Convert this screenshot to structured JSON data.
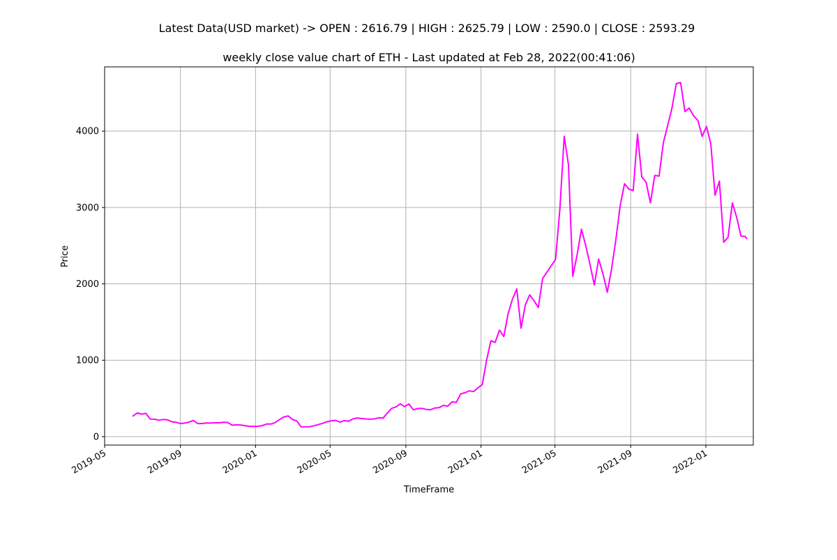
{
  "chart_data": {
    "type": "line",
    "suptitle": "Latest Data(USD market) -> OPEN : 2616.79 | HIGH : 2625.79 | LOW : 2590.0 | CLOSE : 2593.29",
    "title": "weekly close value chart of ETH - Last updated at Feb 28, 2022(00:41:06)",
    "xlabel": "TimeFrame",
    "ylabel": "Price",
    "xlim": [
      "2019-05-01",
      "2022-03-19"
    ],
    "ylim": [
      -110,
      4840
    ],
    "x_ticks": [
      {
        "date": "2019-05-01",
        "label": "2019-05"
      },
      {
        "date": "2019-09-01",
        "label": "2019-09"
      },
      {
        "date": "2020-01-01",
        "label": "2020-01"
      },
      {
        "date": "2020-05-01",
        "label": "2020-05"
      },
      {
        "date": "2020-09-01",
        "label": "2020-09"
      },
      {
        "date": "2021-01-01",
        "label": "2021-01"
      },
      {
        "date": "2021-05-01",
        "label": "2021-05"
      },
      {
        "date": "2021-09-01",
        "label": "2021-09"
      },
      {
        "date": "2022-01-01",
        "label": "2022-01"
      }
    ],
    "y_ticks": [
      {
        "value": 0,
        "label": "0"
      },
      {
        "value": 1000,
        "label": "1000"
      },
      {
        "value": 2000,
        "label": "2000"
      },
      {
        "value": 3000,
        "label": "3000"
      },
      {
        "value": 4000,
        "label": "4000"
      }
    ],
    "grid": true,
    "series": [
      {
        "color": "#ff00ff",
        "points": [
          [
            "2019-06-16",
            270
          ],
          [
            "2019-06-23",
            310
          ],
          [
            "2019-06-30",
            295
          ],
          [
            "2019-07-07",
            305
          ],
          [
            "2019-07-14",
            230
          ],
          [
            "2019-07-21",
            228
          ],
          [
            "2019-07-28",
            215
          ],
          [
            "2019-08-04",
            225
          ],
          [
            "2019-08-11",
            220
          ],
          [
            "2019-08-18",
            195
          ],
          [
            "2019-08-25",
            188
          ],
          [
            "2019-09-01",
            172
          ],
          [
            "2019-09-08",
            178
          ],
          [
            "2019-09-15",
            190
          ],
          [
            "2019-09-22",
            212
          ],
          [
            "2019-09-29",
            172
          ],
          [
            "2019-10-06",
            172
          ],
          [
            "2019-10-13",
            180
          ],
          [
            "2019-10-20",
            178
          ],
          [
            "2019-10-27",
            182
          ],
          [
            "2019-11-03",
            182
          ],
          [
            "2019-11-10",
            188
          ],
          [
            "2019-11-17",
            185
          ],
          [
            "2019-11-24",
            150
          ],
          [
            "2019-12-01",
            155
          ],
          [
            "2019-12-08",
            152
          ],
          [
            "2019-12-15",
            144
          ],
          [
            "2019-12-22",
            135
          ],
          [
            "2019-12-29",
            135
          ],
          [
            "2020-01-05",
            135
          ],
          [
            "2020-01-12",
            145
          ],
          [
            "2020-01-19",
            165
          ],
          [
            "2020-01-26",
            165
          ],
          [
            "2020-02-02",
            185
          ],
          [
            "2020-02-09",
            225
          ],
          [
            "2020-02-16",
            258
          ],
          [
            "2020-02-23",
            272
          ],
          [
            "2020-03-01",
            225
          ],
          [
            "2020-03-08",
            205
          ],
          [
            "2020-03-15",
            128
          ],
          [
            "2020-03-22",
            128
          ],
          [
            "2020-03-29",
            130
          ],
          [
            "2020-04-05",
            143
          ],
          [
            "2020-04-12",
            158
          ],
          [
            "2020-04-19",
            175
          ],
          [
            "2020-04-26",
            195
          ],
          [
            "2020-05-03",
            208
          ],
          [
            "2020-05-10",
            214
          ],
          [
            "2020-05-17",
            190
          ],
          [
            "2020-05-24",
            210
          ],
          [
            "2020-05-31",
            203
          ],
          [
            "2020-06-07",
            232
          ],
          [
            "2020-06-14",
            245
          ],
          [
            "2020-06-21",
            237
          ],
          [
            "2020-06-28",
            232
          ],
          [
            "2020-07-05",
            230
          ],
          [
            "2020-07-12",
            232
          ],
          [
            "2020-07-19",
            247
          ],
          [
            "2020-07-26",
            243
          ],
          [
            "2020-08-02",
            310
          ],
          [
            "2020-08-09",
            370
          ],
          [
            "2020-08-16",
            390
          ],
          [
            "2020-08-23",
            430
          ],
          [
            "2020-08-30",
            393
          ],
          [
            "2020-09-06",
            428
          ],
          [
            "2020-09-13",
            352
          ],
          [
            "2020-09-20",
            368
          ],
          [
            "2020-09-27",
            370
          ],
          [
            "2020-10-04",
            358
          ],
          [
            "2020-10-11",
            352
          ],
          [
            "2020-10-18",
            375
          ],
          [
            "2020-10-25",
            380
          ],
          [
            "2020-11-01",
            410
          ],
          [
            "2020-11-08",
            400
          ],
          [
            "2020-11-15",
            455
          ],
          [
            "2020-11-22",
            450
          ],
          [
            "2020-11-29",
            560
          ],
          [
            "2020-12-06",
            575
          ],
          [
            "2020-12-13",
            600
          ],
          [
            "2020-12-20",
            590
          ],
          [
            "2020-12-27",
            640
          ],
          [
            "2021-01-03",
            680
          ],
          [
            "2021-01-10",
            1000
          ],
          [
            "2021-01-17",
            1255
          ],
          [
            "2021-01-24",
            1235
          ],
          [
            "2021-01-31",
            1395
          ],
          [
            "2021-02-07",
            1310
          ],
          [
            "2021-02-14",
            1610
          ],
          [
            "2021-02-21",
            1800
          ],
          [
            "2021-02-28",
            1935
          ],
          [
            "2021-03-07",
            1420
          ],
          [
            "2021-03-14",
            1725
          ],
          [
            "2021-03-21",
            1855
          ],
          [
            "2021-03-28",
            1780
          ],
          [
            "2021-04-04",
            1690
          ],
          [
            "2021-04-11",
            2070
          ],
          [
            "2021-05-02",
            2320
          ],
          [
            "2021-05-09",
            2980
          ],
          [
            "2021-05-16",
            3930
          ],
          [
            "2021-05-23",
            3560
          ],
          [
            "2021-05-30",
            2100
          ],
          [
            "2021-06-06",
            2380
          ],
          [
            "2021-06-13",
            2715
          ],
          [
            "2021-06-20",
            2500
          ],
          [
            "2021-06-27",
            2250
          ],
          [
            "2021-07-04",
            1985
          ],
          [
            "2021-07-11",
            2325
          ],
          [
            "2021-07-18",
            2130
          ],
          [
            "2021-07-25",
            1890
          ],
          [
            "2021-08-01",
            2200
          ],
          [
            "2021-08-08",
            2580
          ],
          [
            "2021-08-15",
            3030
          ],
          [
            "2021-08-22",
            3310
          ],
          [
            "2021-08-29",
            3240
          ],
          [
            "2021-09-05",
            3220
          ],
          [
            "2021-09-12",
            3960
          ],
          [
            "2021-09-19",
            3400
          ],
          [
            "2021-09-26",
            3330
          ],
          [
            "2021-10-03",
            3060
          ],
          [
            "2021-10-10",
            3420
          ],
          [
            "2021-10-17",
            3410
          ],
          [
            "2021-10-24",
            3850
          ],
          [
            "2021-10-31",
            4070
          ],
          [
            "2021-11-07",
            4300
          ],
          [
            "2021-11-14",
            4620
          ],
          [
            "2021-11-21",
            4635
          ],
          [
            "2021-11-28",
            4255
          ],
          [
            "2021-12-05",
            4300
          ],
          [
            "2021-12-12",
            4200
          ],
          [
            "2021-12-19",
            4140
          ],
          [
            "2021-12-26",
            3930
          ],
          [
            "2022-01-02",
            4060
          ],
          [
            "2022-01-09",
            3830
          ],
          [
            "2022-01-16",
            3160
          ],
          [
            "2022-01-23",
            3345
          ],
          [
            "2022-01-30",
            2545
          ],
          [
            "2022-02-06",
            2610
          ],
          [
            "2022-02-13",
            3060
          ],
          [
            "2022-02-20",
            2870
          ],
          [
            "2022-02-27",
            2625
          ],
          [
            "2022-03-06",
            2620
          ],
          [
            "2022-03-08",
            2593
          ]
        ]
      }
    ]
  }
}
